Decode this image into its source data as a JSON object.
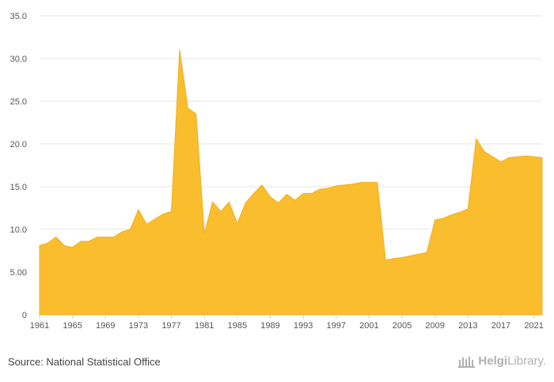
{
  "chart_data": {
    "type": "area",
    "title": "",
    "xlabel": "",
    "ylabel": "",
    "ylim": [
      0,
      35
    ],
    "y_ticks": [
      "0",
      "5.00",
      "10.0",
      "15.0",
      "20.0",
      "25.0",
      "30.0",
      "35.0"
    ],
    "x_ticks": [
      "1961",
      "1965",
      "1969",
      "1973",
      "1977",
      "1981",
      "1985",
      "1989",
      "1993",
      "1997",
      "2001",
      "2005",
      "2009",
      "2013",
      "2017",
      "2021"
    ],
    "grid": true,
    "legend": "none",
    "color": "#f9bd2e",
    "x": [
      1961,
      1962,
      1963,
      1964,
      1965,
      1966,
      1967,
      1968,
      1969,
      1970,
      1971,
      1972,
      1973,
      1974,
      1975,
      1976,
      1977,
      1978,
      1979,
      1980,
      1981,
      1982,
      1983,
      1984,
      1985,
      1986,
      1987,
      1988,
      1989,
      1990,
      1991,
      1992,
      1993,
      1994,
      1995,
      1996,
      1997,
      1998,
      1999,
      2000,
      2001,
      2002,
      2003,
      2004,
      2005,
      2006,
      2007,
      2008,
      2009,
      2010,
      2011,
      2012,
      2013,
      2014,
      2015,
      2016,
      2017,
      2018,
      2019,
      2020,
      2021,
      2022
    ],
    "values": [
      8.1,
      8.4,
      9.1,
      8.1,
      7.9,
      8.6,
      8.6,
      9.1,
      9.1,
      9.1,
      9.7,
      10.0,
      12.3,
      10.6,
      11.2,
      11.8,
      12.1,
      31.0,
      24.2,
      23.5,
      9.5,
      13.2,
      12.1,
      13.2,
      10.7,
      13.1,
      14.2,
      15.2,
      13.8,
      13.1,
      14.1,
      13.4,
      14.2,
      14.2,
      14.7,
      14.8,
      15.1,
      15.2,
      15.3,
      15.5,
      15.5,
      15.5,
      6.4,
      6.6,
      6.7,
      6.9,
      7.1,
      7.3,
      11.1,
      11.3,
      11.7,
      12.0,
      12.4,
      20.6,
      19.1,
      18.5,
      17.9,
      18.4,
      18.5,
      18.6,
      18.5,
      18.4
    ]
  },
  "footer": {
    "source": "Source: National Statistical Office",
    "brand_name": "Helgi",
    "brand_suffix": "Library."
  }
}
